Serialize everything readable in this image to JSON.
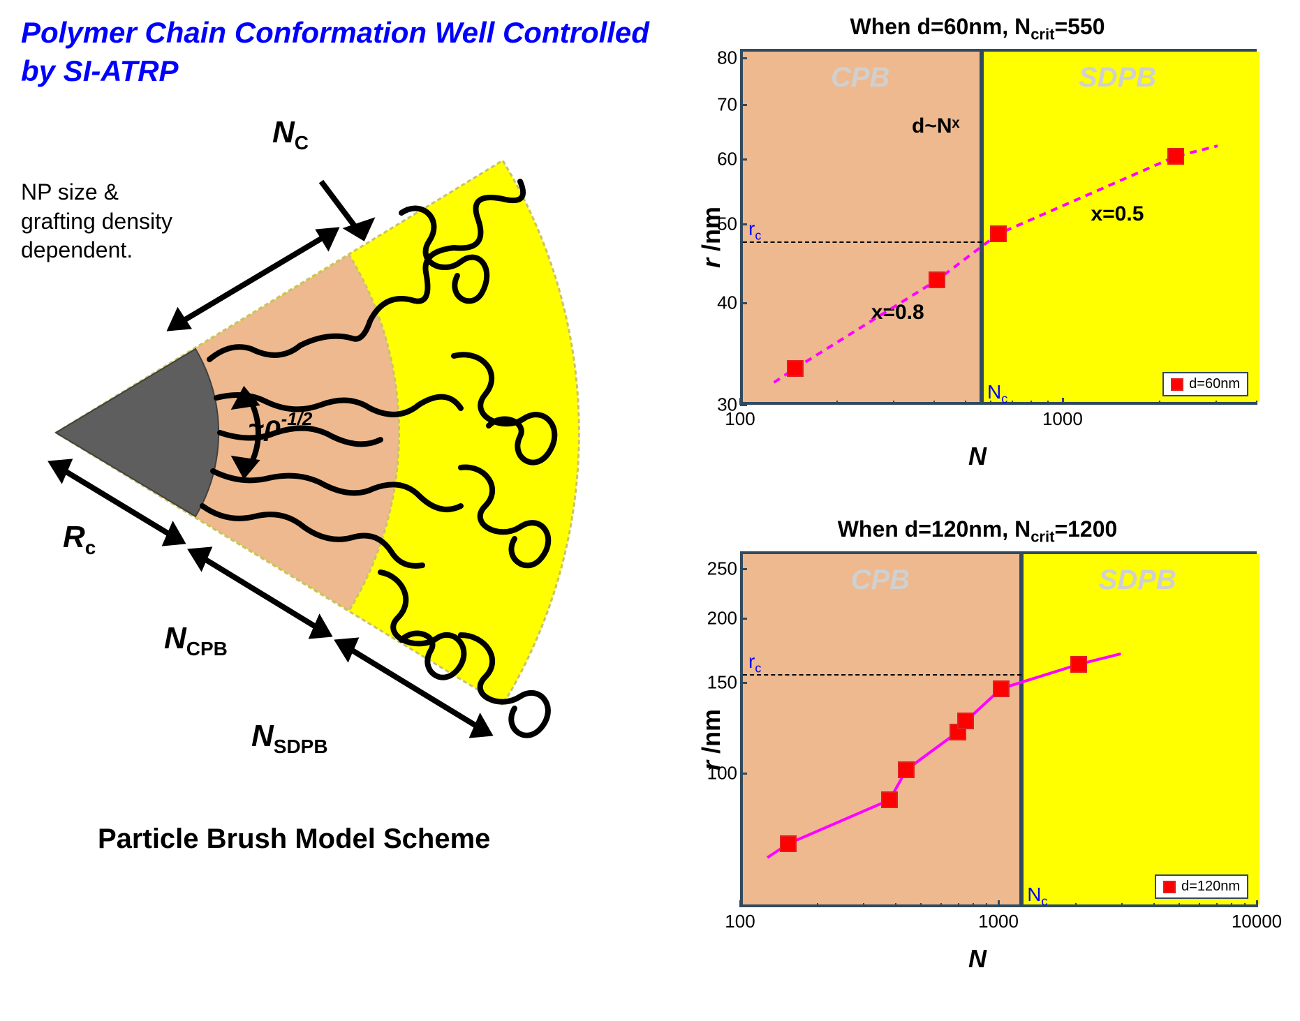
{
  "title_line1": "Polymer Chain Conformation Well Controlled",
  "title_line2": "by SI-ATRP",
  "diagram": {
    "annotation_np": "NP size &\ngrafting density\ndependent.",
    "label_nc": "N",
    "label_nc_sub": "C",
    "label_rho": "~ρ",
    "label_rho_sup": "-1/2",
    "label_rc": "R",
    "label_rc_sub": "c",
    "label_ncpb": "N",
    "label_ncpb_sub": "CPB",
    "label_nsdpb": "N",
    "label_nsdpb_sub": "SDPB",
    "caption": "Particle Brush Model Scheme",
    "colors": {
      "core": "#5e5e5e",
      "inner_shell": "#eeb98e",
      "outer_shell": "#ffff00",
      "border": "#c9c26a",
      "chain": "#000000"
    }
  },
  "chart1": {
    "title": "When d=60nm, Ncrit=550",
    "type": "log-log-scatter",
    "xlabel": "N",
    "ylabel": "r /nm",
    "xticks": [
      100,
      1000
    ],
    "xtick_labels": [
      "100",
      "1000"
    ],
    "yticks": [
      30,
      40,
      50,
      60,
      70,
      80
    ],
    "ytick_labels": [
      "30",
      "40",
      "50",
      "60",
      "70",
      "80"
    ],
    "xlim": [
      100,
      4000
    ],
    "ylim": [
      30,
      82
    ],
    "nc_value": 550,
    "rc_value": 48,
    "region_cpb": "CPB",
    "region_sdpb": "SDPB",
    "d_nx_label": "d~Nˣ",
    "x_cpb_label": "x=0.8",
    "x_sdpb_label": "x=0.5",
    "rc_label": "rc",
    "nc_label": "Nc",
    "legend_text": "d=60nm",
    "data": [
      {
        "N": 145,
        "r": 33.5
      },
      {
        "N": 400,
        "r": 43
      },
      {
        "N": 620,
        "r": 49
      },
      {
        "N": 2200,
        "r": 61
      }
    ],
    "fit_color": "#ff00ff",
    "fit_dashed": true,
    "marker_color": "#ff0000",
    "cpb_bg": "#eeb98e",
    "sdpb_bg": "#ffff00",
    "frame_color": "#314a5e"
  },
  "chart2": {
    "title": "When d=120nm, Ncrit=1200",
    "type": "log-log-scatter",
    "xlabel": "N",
    "ylabel": "r /nm",
    "xticks": [
      100,
      1000,
      10000
    ],
    "xtick_labels": [
      "100",
      "1000",
      "10000"
    ],
    "yticks": [
      100,
      150,
      200,
      250
    ],
    "ytick_labels": [
      "100",
      "150",
      "200",
      "250"
    ],
    "xlim": [
      100,
      10000
    ],
    "ylim": [
      55,
      270
    ],
    "nc_value": 1200,
    "rc_value": 158,
    "region_cpb": "CPB",
    "region_sdpb": "SDPB",
    "rc_label": "rc",
    "nc_label": "Nc",
    "legend_text": "d=120nm",
    "data": [
      {
        "N": 150,
        "r": 74
      },
      {
        "N": 370,
        "r": 90
      },
      {
        "N": 430,
        "r": 103
      },
      {
        "N": 680,
        "r": 122
      },
      {
        "N": 730,
        "r": 128
      },
      {
        "N": 1000,
        "r": 148
      },
      {
        "N": 2000,
        "r": 165
      }
    ],
    "fit_color": "#ff00ff",
    "fit_dashed": false,
    "marker_color": "#ff0000",
    "cpb_bg": "#eeb98e",
    "sdpb_bg": "#ffff00",
    "frame_color": "#314a5e"
  }
}
